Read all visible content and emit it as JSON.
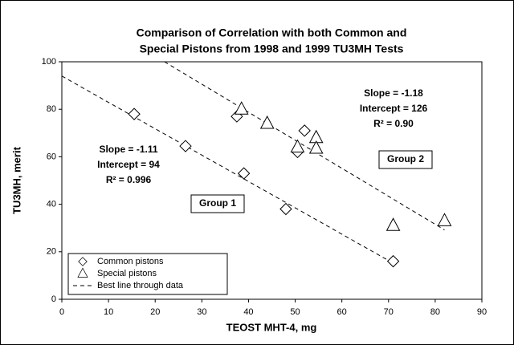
{
  "chart_data": {
    "type": "scatter",
    "title": [
      "Comparison of Correlation with both Common and",
      "Special Pistons from 1998 and 1999 TU3MH Tests"
    ],
    "x_label": "TEOST MHT-4, mg",
    "y_label": "TU3MH, merit",
    "xlim": [
      0,
      90
    ],
    "xticks": [
      0,
      10,
      20,
      30,
      40,
      50,
      60,
      70,
      80,
      90
    ],
    "ylim": [
      0,
      100
    ],
    "yticks": [
      0,
      20,
      40,
      60,
      80,
      100
    ],
    "legend": "lower left",
    "series": [
      {
        "name": "Common pistons",
        "marker": "diamond",
        "color": "#000000",
        "x": [
          15.5,
          26.5,
          37.5,
          39,
          48,
          50.5,
          52,
          71
        ],
        "values": [
          78,
          64.5,
          77,
          53,
          38,
          62,
          71,
          16
        ]
      },
      {
        "name": "Special pistons",
        "marker": "triangle",
        "color": "#000000",
        "x": [
          38.5,
          44,
          50.5,
          54.5,
          54.5,
          71,
          82
        ],
        "values": [
          80,
          74,
          64,
          68,
          63.5,
          31,
          33
        ]
      },
      {
        "name": "Best line through data",
        "marker": "dashed-line",
        "color": "#000000",
        "x": [
          0,
          71,
          null,
          22,
          82
        ],
        "values": [
          94,
          15.2,
          null,
          100,
          29.2
        ]
      }
    ],
    "annotations": [
      [
        "Slope = -1.11",
        "Intercept = 94",
        "R² = 0.996"
      ],
      [
        "Slope = -1.18",
        "Intercept = 126",
        "R² = 0.90"
      ],
      [
        "Group 1"
      ],
      [
        "Group 2"
      ]
    ]
  }
}
